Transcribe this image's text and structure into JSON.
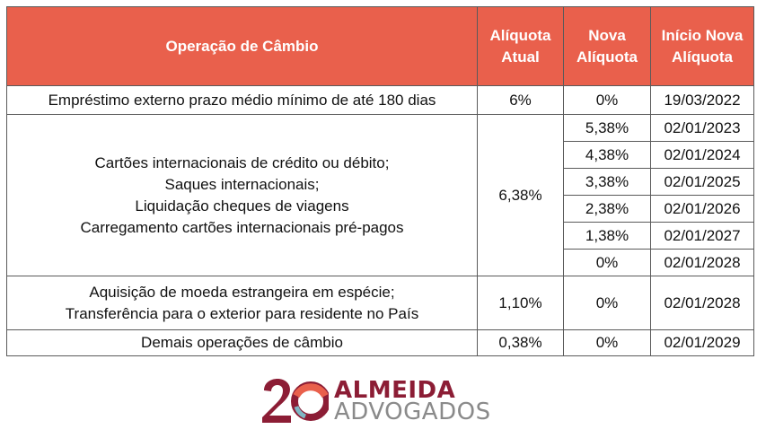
{
  "table": {
    "headers": {
      "operation": "Operação de Câmbio",
      "current_rate": "Alíquota\nAtual",
      "new_rate": "Nova\nAlíquota",
      "start_date": "Início Nova\nAlíquota"
    },
    "loans": {
      "operation": "Empréstimo externo prazo médio mínimo de até 180 dias",
      "current_rate": "6%",
      "new_rate": "0%",
      "start_date": "19/03/2022"
    },
    "cards": {
      "operation": "Cartões internacionais de crédito ou débito;\nSaques internacionais;\nLiquidação cheques de viagens\nCarregamento cartões internacionais pré-pagos",
      "current_rate": "6,38%",
      "steps": [
        {
          "new_rate": "5,38%",
          "start_date": "02/01/2023"
        },
        {
          "new_rate": "4,38%",
          "start_date": "02/01/2024"
        },
        {
          "new_rate": "3,38%",
          "start_date": "02/01/2025"
        },
        {
          "new_rate": "2,38%",
          "start_date": "02/01/2026"
        },
        {
          "new_rate": "1,38%",
          "start_date": "02/01/2027"
        },
        {
          "new_rate": "0%",
          "start_date": "02/01/2028"
        }
      ]
    },
    "cash": {
      "operation": "Aquisição de moeda estrangeira em espécie;\nTransferência para o exterior para residente no País",
      "current_rate": "1,10%",
      "new_rate": "0%",
      "start_date": "02/01/2028"
    },
    "other": {
      "operation": "Demais operações de câmbio",
      "current_rate": "0,38%",
      "new_rate": "0%",
      "start_date": "02/01/2029"
    }
  },
  "logo": {
    "numeral": "20",
    "line1": "ALMEIDA",
    "line2": "ADVOGADOS",
    "colors": {
      "primary": "#8c1d35",
      "secondary": "#8a8a8a",
      "accent": "#e9604c",
      "teal": "#7fb7c4"
    }
  },
  "colors": {
    "header_background": "#e9604c",
    "header_text": "#ffffff",
    "border": "#5a5a5a"
  }
}
